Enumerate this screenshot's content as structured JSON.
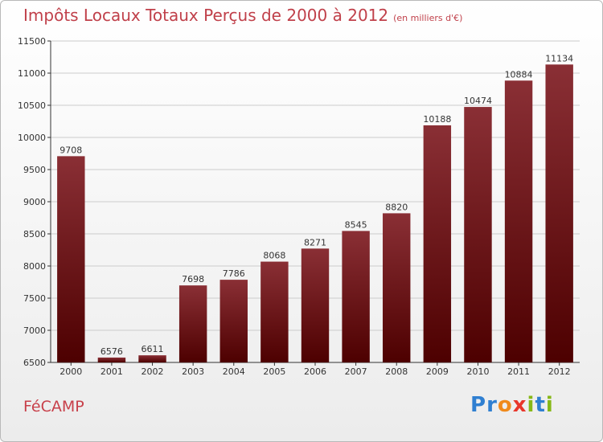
{
  "title": "Impôts Locaux Totaux Perçus de 2000 à 2012",
  "title_unit": "(en milliers d'€)",
  "city": "FéCAMP",
  "brand": {
    "letters": [
      "P",
      "r",
      "o",
      "x",
      "i",
      "t",
      "i"
    ],
    "colors": [
      "#2f7fd1",
      "#2f7fd1",
      "#f08a1c",
      "#e8362b",
      "#86b817",
      "#2f7fd1",
      "#86b817"
    ]
  },
  "colors": {
    "bar_top": "#8a2f35",
    "bar_bottom": "#4d0000",
    "grid": "#cccccc",
    "axis": "#333333"
  },
  "chart_data": {
    "type": "bar",
    "title": "Impôts Locaux Totaux Perçus de 2000 à 2012",
    "categories": [
      "2000",
      "2001",
      "2002",
      "2003",
      "2004",
      "2005",
      "2006",
      "2007",
      "2008",
      "2009",
      "2010",
      "2011",
      "2012"
    ],
    "values": [
      9708,
      6576,
      6611,
      7698,
      7786,
      8068,
      8271,
      8545,
      8820,
      10188,
      10474,
      10884,
      11134
    ],
    "ylim": [
      6500,
      11500
    ],
    "yticks": [
      6500,
      7000,
      7500,
      8000,
      8500,
      9000,
      9500,
      10000,
      10500,
      11000,
      11500
    ],
    "grid": true,
    "xlabel": "",
    "ylabel": ""
  }
}
